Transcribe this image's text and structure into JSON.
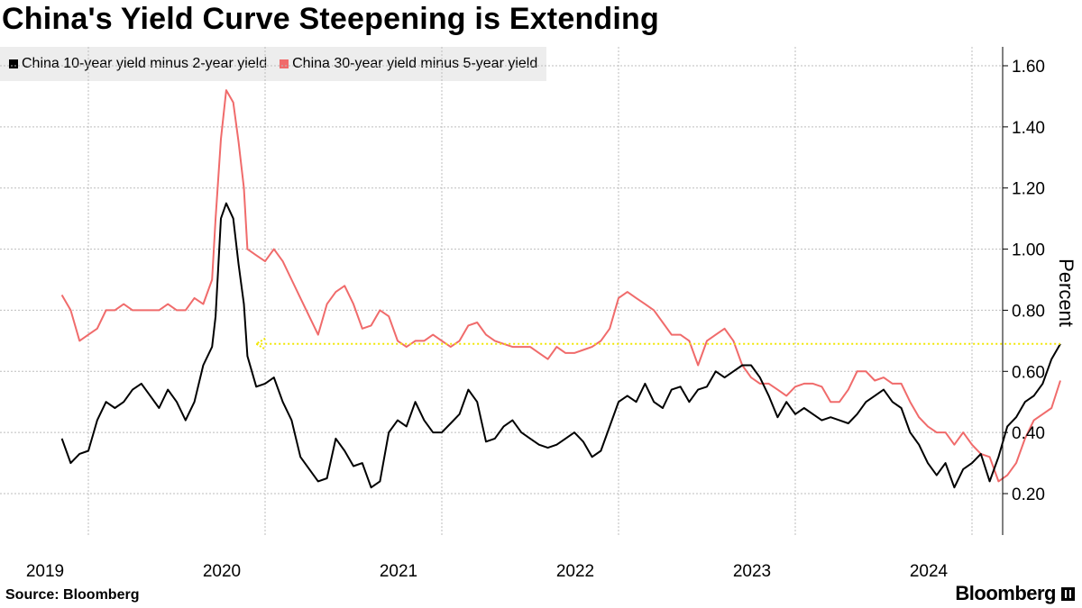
{
  "title": "China's Yield Curve Steepening is Extending",
  "source": "Source: Bloomberg",
  "brand": "Bloomberg",
  "colors": {
    "series1": "#000000",
    "series2": "#f06b6b",
    "reference": "#f2e600",
    "grid": "#bdbdbd",
    "legend_bg": "#ededed"
  },
  "chart_data": {
    "type": "line",
    "title": "China's Yield Curve Steepening is Extending",
    "ylabel": "Percent",
    "xlabel": "",
    "ylim": [
      0.05,
      1.67
    ],
    "xlim": [
      2018.85,
      2024.2
    ],
    "y_ticks": [
      0.2,
      0.4,
      0.6,
      0.8,
      1.0,
      1.2,
      1.4,
      1.6
    ],
    "y_tick_labels": [
      "0.20",
      "0.40",
      "0.60",
      "0.80",
      "1.00",
      "1.20",
      "1.40",
      "1.60"
    ],
    "x_ticks": [
      2019,
      2020,
      2021,
      2022,
      2023,
      2024
    ],
    "x_tick_labels": [
      "2019",
      "2020",
      "2021",
      "2022",
      "2023",
      "2024"
    ],
    "grid": true,
    "y_axis_position": "right",
    "legend_position": "top-left",
    "series": [
      {
        "name": "China 10-year yield minus 2-year yield",
        "color": "#000000",
        "points": [
          [
            2018.85,
            0.38
          ],
          [
            2018.9,
            0.3
          ],
          [
            2018.95,
            0.33
          ],
          [
            2019.0,
            0.34
          ],
          [
            2019.05,
            0.44
          ],
          [
            2019.1,
            0.5
          ],
          [
            2019.15,
            0.48
          ],
          [
            2019.2,
            0.5
          ],
          [
            2019.25,
            0.54
          ],
          [
            2019.3,
            0.56
          ],
          [
            2019.35,
            0.52
          ],
          [
            2019.4,
            0.48
          ],
          [
            2019.45,
            0.54
          ],
          [
            2019.5,
            0.5
          ],
          [
            2019.55,
            0.44
          ],
          [
            2019.6,
            0.5
          ],
          [
            2019.65,
            0.62
          ],
          [
            2019.7,
            0.68
          ],
          [
            2019.72,
            0.78
          ],
          [
            2019.75,
            1.1
          ],
          [
            2019.78,
            1.15
          ],
          [
            2019.82,
            1.1
          ],
          [
            2019.85,
            0.95
          ],
          [
            2019.88,
            0.82
          ],
          [
            2019.9,
            0.65
          ],
          [
            2019.95,
            0.55
          ],
          [
            2020.0,
            0.56
          ],
          [
            2020.05,
            0.58
          ],
          [
            2020.1,
            0.5
          ],
          [
            2020.15,
            0.44
          ],
          [
            2020.2,
            0.32
          ],
          [
            2020.3,
            0.24
          ],
          [
            2020.35,
            0.25
          ],
          [
            2020.4,
            0.38
          ],
          [
            2020.45,
            0.34
          ],
          [
            2020.5,
            0.29
          ],
          [
            2020.55,
            0.3
          ],
          [
            2020.6,
            0.22
          ],
          [
            2020.65,
            0.24
          ],
          [
            2020.7,
            0.4
          ],
          [
            2020.75,
            0.44
          ],
          [
            2020.8,
            0.42
          ],
          [
            2020.85,
            0.5
          ],
          [
            2020.9,
            0.44
          ],
          [
            2020.95,
            0.4
          ],
          [
            2021.0,
            0.4
          ],
          [
            2021.05,
            0.43
          ],
          [
            2021.1,
            0.46
          ],
          [
            2021.15,
            0.54
          ],
          [
            2021.2,
            0.5
          ],
          [
            2021.25,
            0.37
          ],
          [
            2021.3,
            0.38
          ],
          [
            2021.35,
            0.42
          ],
          [
            2021.4,
            0.44
          ],
          [
            2021.45,
            0.4
          ],
          [
            2021.5,
            0.38
          ],
          [
            2021.55,
            0.36
          ],
          [
            2021.6,
            0.35
          ],
          [
            2021.65,
            0.36
          ],
          [
            2021.7,
            0.38
          ],
          [
            2021.75,
            0.4
          ],
          [
            2021.8,
            0.37
          ],
          [
            2021.85,
            0.32
          ],
          [
            2021.9,
            0.34
          ],
          [
            2021.95,
            0.42
          ],
          [
            2022.0,
            0.5
          ],
          [
            2022.05,
            0.52
          ],
          [
            2022.1,
            0.5
          ],
          [
            2022.15,
            0.56
          ],
          [
            2022.2,
            0.5
          ],
          [
            2022.25,
            0.48
          ],
          [
            2022.3,
            0.54
          ],
          [
            2022.35,
            0.55
          ],
          [
            2022.4,
            0.5
          ],
          [
            2022.45,
            0.54
          ],
          [
            2022.5,
            0.55
          ],
          [
            2022.55,
            0.6
          ],
          [
            2022.6,
            0.58
          ],
          [
            2022.65,
            0.6
          ],
          [
            2022.7,
            0.62
          ],
          [
            2022.75,
            0.62
          ],
          [
            2022.8,
            0.58
          ],
          [
            2022.85,
            0.52
          ],
          [
            2022.9,
            0.45
          ],
          [
            2022.95,
            0.5
          ],
          [
            2023.0,
            0.46
          ],
          [
            2023.05,
            0.48
          ],
          [
            2023.1,
            0.46
          ],
          [
            2023.15,
            0.44
          ],
          [
            2023.2,
            0.45
          ],
          [
            2023.25,
            0.44
          ],
          [
            2023.3,
            0.43
          ],
          [
            2023.35,
            0.46
          ],
          [
            2023.4,
            0.5
          ],
          [
            2023.45,
            0.52
          ],
          [
            2023.5,
            0.54
          ],
          [
            2023.55,
            0.5
          ],
          [
            2023.6,
            0.48
          ],
          [
            2023.65,
            0.4
          ],
          [
            2023.7,
            0.36
          ],
          [
            2023.75,
            0.3
          ],
          [
            2023.8,
            0.26
          ],
          [
            2023.85,
            0.3
          ],
          [
            2023.9,
            0.22
          ],
          [
            2023.95,
            0.28
          ],
          [
            2024.0,
            0.3
          ],
          [
            2024.05,
            0.33
          ],
          [
            2024.1,
            0.24
          ],
          [
            2024.15,
            0.32
          ],
          [
            2024.2,
            0.42
          ],
          [
            2024.25,
            0.45
          ],
          [
            2024.3,
            0.5
          ],
          [
            2024.35,
            0.52
          ],
          [
            2024.4,
            0.56
          ],
          [
            2024.45,
            0.64
          ],
          [
            2024.5,
            0.69
          ]
        ]
      },
      {
        "name": "China 30-year yield minus 5-year yield",
        "color": "#f06b6b",
        "points": [
          [
            2018.85,
            0.85
          ],
          [
            2018.9,
            0.8
          ],
          [
            2018.95,
            0.7
          ],
          [
            2019.0,
            0.72
          ],
          [
            2019.05,
            0.74
          ],
          [
            2019.1,
            0.8
          ],
          [
            2019.15,
            0.8
          ],
          [
            2019.2,
            0.82
          ],
          [
            2019.25,
            0.8
          ],
          [
            2019.3,
            0.8
          ],
          [
            2019.35,
            0.8
          ],
          [
            2019.4,
            0.8
          ],
          [
            2019.45,
            0.82
          ],
          [
            2019.5,
            0.8
          ],
          [
            2019.55,
            0.8
          ],
          [
            2019.6,
            0.84
          ],
          [
            2019.65,
            0.82
          ],
          [
            2019.7,
            0.9
          ],
          [
            2019.72,
            1.1
          ],
          [
            2019.75,
            1.36
          ],
          [
            2019.78,
            1.52
          ],
          [
            2019.82,
            1.48
          ],
          [
            2019.85,
            1.35
          ],
          [
            2019.88,
            1.2
          ],
          [
            2019.9,
            1.0
          ],
          [
            2019.95,
            0.98
          ],
          [
            2020.0,
            0.96
          ],
          [
            2020.05,
            1.0
          ],
          [
            2020.1,
            0.96
          ],
          [
            2020.15,
            0.9
          ],
          [
            2020.2,
            0.84
          ],
          [
            2020.3,
            0.72
          ],
          [
            2020.35,
            0.82
          ],
          [
            2020.4,
            0.86
          ],
          [
            2020.45,
            0.88
          ],
          [
            2020.5,
            0.82
          ],
          [
            2020.55,
            0.74
          ],
          [
            2020.6,
            0.75
          ],
          [
            2020.65,
            0.8
          ],
          [
            2020.7,
            0.78
          ],
          [
            2020.75,
            0.7
          ],
          [
            2020.8,
            0.68
          ],
          [
            2020.85,
            0.7
          ],
          [
            2020.9,
            0.7
          ],
          [
            2020.95,
            0.72
          ],
          [
            2021.0,
            0.7
          ],
          [
            2021.05,
            0.68
          ],
          [
            2021.1,
            0.7
          ],
          [
            2021.15,
            0.75
          ],
          [
            2021.2,
            0.76
          ],
          [
            2021.25,
            0.72
          ],
          [
            2021.3,
            0.7
          ],
          [
            2021.35,
            0.69
          ],
          [
            2021.4,
            0.68
          ],
          [
            2021.45,
            0.68
          ],
          [
            2021.5,
            0.68
          ],
          [
            2021.55,
            0.66
          ],
          [
            2021.6,
            0.64
          ],
          [
            2021.65,
            0.68
          ],
          [
            2021.7,
            0.66
          ],
          [
            2021.75,
            0.66
          ],
          [
            2021.8,
            0.67
          ],
          [
            2021.85,
            0.68
          ],
          [
            2021.9,
            0.7
          ],
          [
            2021.95,
            0.74
          ],
          [
            2022.0,
            0.84
          ],
          [
            2022.05,
            0.86
          ],
          [
            2022.1,
            0.84
          ],
          [
            2022.15,
            0.82
          ],
          [
            2022.2,
            0.8
          ],
          [
            2022.25,
            0.76
          ],
          [
            2022.3,
            0.72
          ],
          [
            2022.35,
            0.72
          ],
          [
            2022.4,
            0.7
          ],
          [
            2022.45,
            0.62
          ],
          [
            2022.5,
            0.7
          ],
          [
            2022.55,
            0.72
          ],
          [
            2022.6,
            0.74
          ],
          [
            2022.65,
            0.7
          ],
          [
            2022.7,
            0.62
          ],
          [
            2022.75,
            0.58
          ],
          [
            2022.8,
            0.56
          ],
          [
            2022.85,
            0.56
          ],
          [
            2022.9,
            0.54
          ],
          [
            2022.95,
            0.52
          ],
          [
            2023.0,
            0.55
          ],
          [
            2023.05,
            0.56
          ],
          [
            2023.1,
            0.56
          ],
          [
            2023.15,
            0.55
          ],
          [
            2023.2,
            0.5
          ],
          [
            2023.25,
            0.5
          ],
          [
            2023.3,
            0.54
          ],
          [
            2023.35,
            0.6
          ],
          [
            2023.4,
            0.6
          ],
          [
            2023.45,
            0.57
          ],
          [
            2023.5,
            0.58
          ],
          [
            2023.55,
            0.56
          ],
          [
            2023.6,
            0.56
          ],
          [
            2023.65,
            0.5
          ],
          [
            2023.7,
            0.45
          ],
          [
            2023.75,
            0.42
          ],
          [
            2023.8,
            0.4
          ],
          [
            2023.85,
            0.4
          ],
          [
            2023.9,
            0.36
          ],
          [
            2023.95,
            0.4
          ],
          [
            2024.0,
            0.36
          ],
          [
            2024.05,
            0.33
          ],
          [
            2024.1,
            0.32
          ],
          [
            2024.15,
            0.24
          ],
          [
            2024.2,
            0.26
          ],
          [
            2024.25,
            0.3
          ],
          [
            2024.3,
            0.38
          ],
          [
            2024.35,
            0.44
          ],
          [
            2024.4,
            0.46
          ],
          [
            2024.45,
            0.48
          ],
          [
            2024.5,
            0.57
          ]
        ]
      }
    ],
    "reference_line": {
      "y": 0.69,
      "x_start": 2019.95,
      "x_end": 2024.5,
      "style": "dotted",
      "arrow": "left"
    }
  }
}
